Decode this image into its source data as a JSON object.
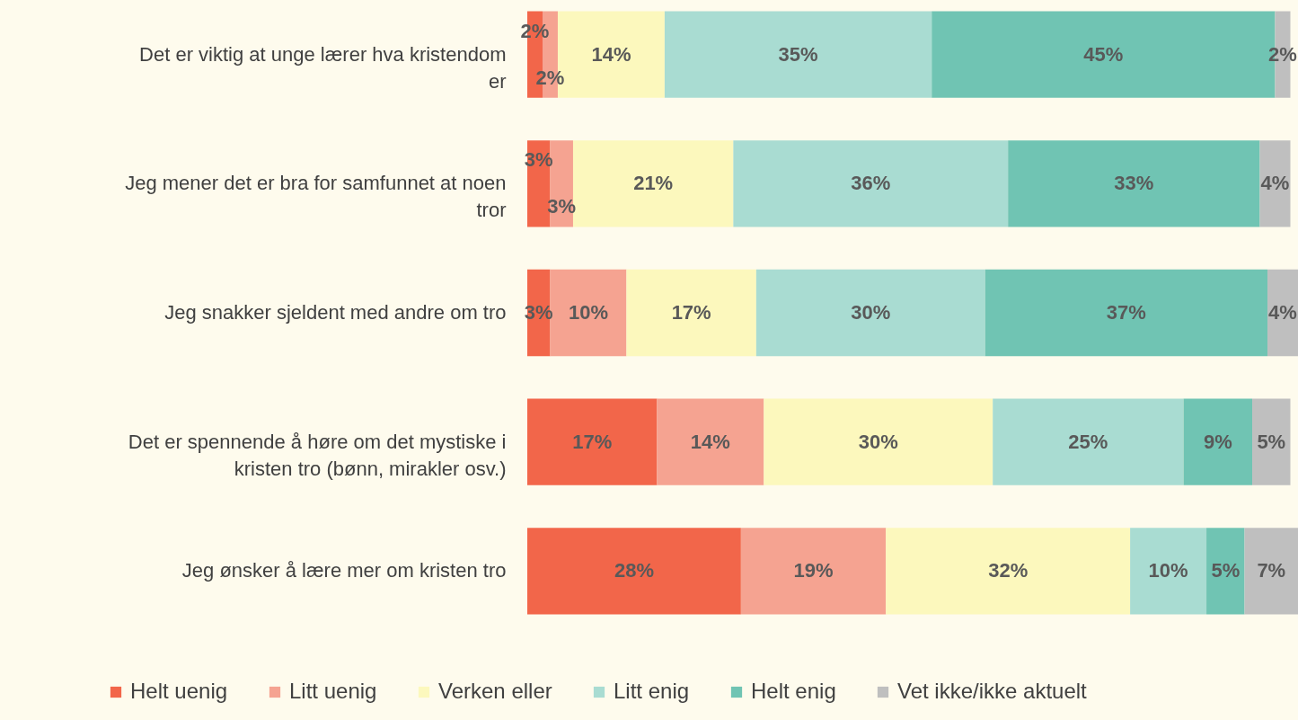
{
  "chart_data": {
    "type": "bar",
    "orientation": "horizontal",
    "stacked": true,
    "legend": "bottom",
    "categories": [
      "Det er viktig at unge lærer hva kristendom er",
      "Jeg mener det er bra for samfunnet at noen tror",
      "Jeg snakker sjeldent med andre om tro",
      "Det er spennende å høre om det mystiske i kristen tro (bønn, mirakler osv.)",
      "Jeg ønsker å lære mer om kristen tro"
    ],
    "series": [
      {
        "name": "Helt uenig",
        "color": "#f2664a",
        "values": [
          2,
          3,
          3,
          17,
          28
        ],
        "value_labels": [
          "2%",
          "3%",
          "3%",
          "17%",
          "28%"
        ]
      },
      {
        "name": "Litt uenig",
        "color": "#f5a391",
        "values": [
          2,
          3,
          10,
          14,
          19
        ],
        "value_labels": [
          "2%",
          "3%",
          "10%",
          "14%",
          "19%"
        ]
      },
      {
        "name": "Verken eller",
        "color": "#fcf8bd",
        "values": [
          14,
          21,
          17,
          30,
          32
        ],
        "value_labels": [
          "14%",
          "21%",
          "17%",
          "30%",
          "32%"
        ]
      },
      {
        "name": "Litt enig",
        "color": "#a9dcd2",
        "values": [
          35,
          36,
          30,
          25,
          10
        ],
        "value_labels": [
          "35%",
          "36%",
          "30%",
          "25%",
          "10%"
        ]
      },
      {
        "name": "Helt enig",
        "color": "#70c4b3",
        "values": [
          45,
          33,
          37,
          9,
          5
        ],
        "value_labels": [
          "45%",
          "33%",
          "37%",
          "9%",
          "5%"
        ]
      },
      {
        "name": "Vet ikke/ikke aktuelt",
        "color": "#bfbfbf",
        "values": [
          2,
          4,
          4,
          5,
          7
        ],
        "value_labels": [
          "2%",
          "4%",
          "4%",
          "5%",
          "7%"
        ]
      }
    ]
  }
}
